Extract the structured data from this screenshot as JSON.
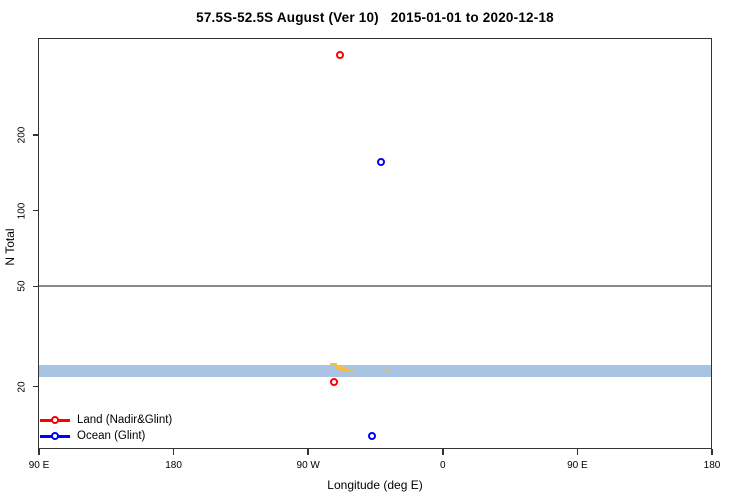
{
  "chart_data": {
    "type": "scatter",
    "title": "57.5S-52.5S August (Ver 10)   2015-01-01 to 2020-12-18",
    "x_axis": {
      "label": "Longitude (deg E)",
      "range": [
        90,
        540
      ],
      "ticks": [
        {
          "v": 90,
          "label": "90 E"
        },
        {
          "v": 180,
          "label": "180"
        },
        {
          "v": 270,
          "label": "90 W"
        },
        {
          "v": 360,
          "label": "0"
        },
        {
          "v": 450,
          "label": "90 E"
        },
        {
          "v": 540,
          "label": "180"
        }
      ]
    },
    "y_axis": {
      "label": "N Total",
      "scale": "log",
      "range": [
        11.3,
        481
      ],
      "ticks": [
        {
          "v": 20,
          "label": "20"
        },
        {
          "v": 50,
          "label": "50"
        },
        {
          "v": 100,
          "label": "100"
        },
        {
          "v": 200,
          "label": "200"
        }
      ]
    },
    "reference_line": {
      "n": 50,
      "color": "#8a8a8a"
    },
    "latitude_band": {
      "n_range": [
        21.8,
        24.4
      ],
      "color": "#a9c3e2",
      "land_color": "#f2bd4f",
      "land_marks": [
        {
          "lon": [
            284.6,
            289.3
          ],
          "frac": [
            -0.17,
            0.08
          ]
        },
        {
          "lon": [
            288.6,
            293.9
          ],
          "frac": [
            0.0,
            0.33
          ]
        },
        {
          "lon": [
            291.3,
            295.9
          ],
          "frac": [
            0.25,
            0.5
          ]
        },
        {
          "lon": [
            294.6,
            299.9
          ],
          "frac": [
            0.33,
            0.55
          ]
        },
        {
          "lon": [
            322.0,
            324.7
          ],
          "frac": [
            0.33,
            0.5
          ]
        }
      ]
    },
    "series": [
      {
        "name": "Land (Nadir&Glint)",
        "color": "#ff0000",
        "points": [
          {
            "lon": 291.3,
            "n": 412
          },
          {
            "lon": 287.9,
            "n": 20.7
          }
        ]
      },
      {
        "name": "Ocean (Glint)",
        "color": "#0000ff",
        "points": [
          {
            "lon": 319.3,
            "n": 156
          },
          {
            "lon": 313.3,
            "n": 12.7
          }
        ]
      }
    ],
    "legend_position": "bottom-left",
    "grid": "off"
  }
}
